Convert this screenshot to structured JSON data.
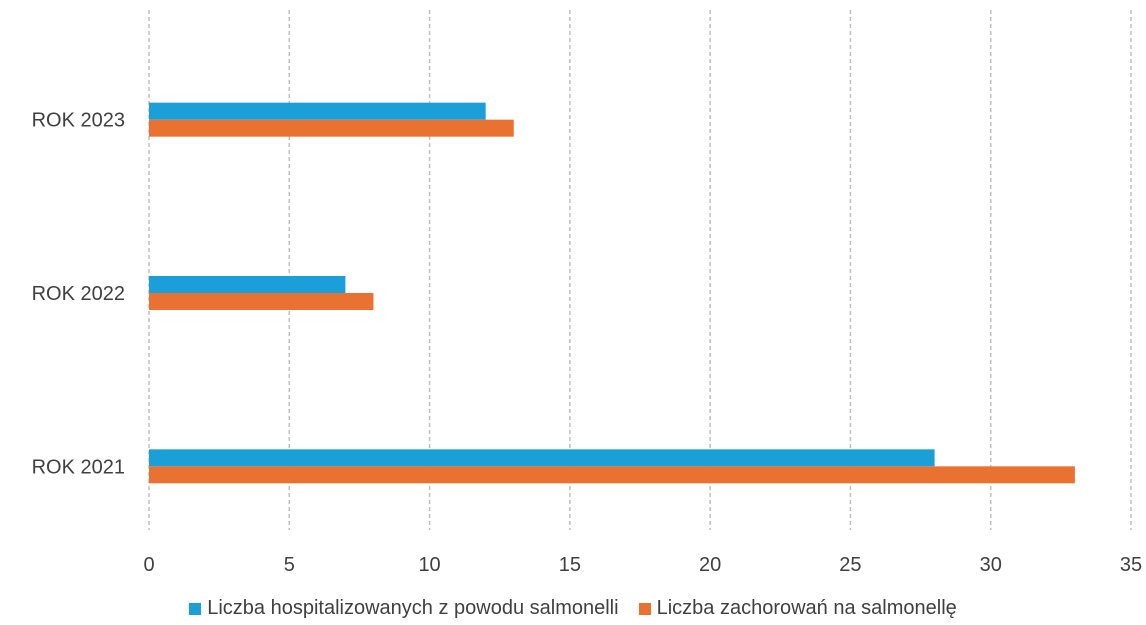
{
  "chart_data": {
    "type": "bar",
    "orientation": "horizontal",
    "categories": [
      "ROK 2021",
      "ROK 2022",
      "ROK 2023"
    ],
    "series": [
      {
        "name": "Liczba hospitalizowanych z powodu salmonelli",
        "color": "#1a9fd9",
        "values": [
          28,
          7,
          12
        ]
      },
      {
        "name": "Liczba zachorowań na salmonellę",
        "color": "#e97132",
        "values": [
          33,
          8,
          13
        ]
      }
    ],
    "xlim": [
      0,
      35
    ],
    "xticks": [
      0,
      5,
      10,
      15,
      20,
      25,
      30,
      35
    ],
    "grid": "vertical dashed",
    "legend_position": "bottom"
  }
}
